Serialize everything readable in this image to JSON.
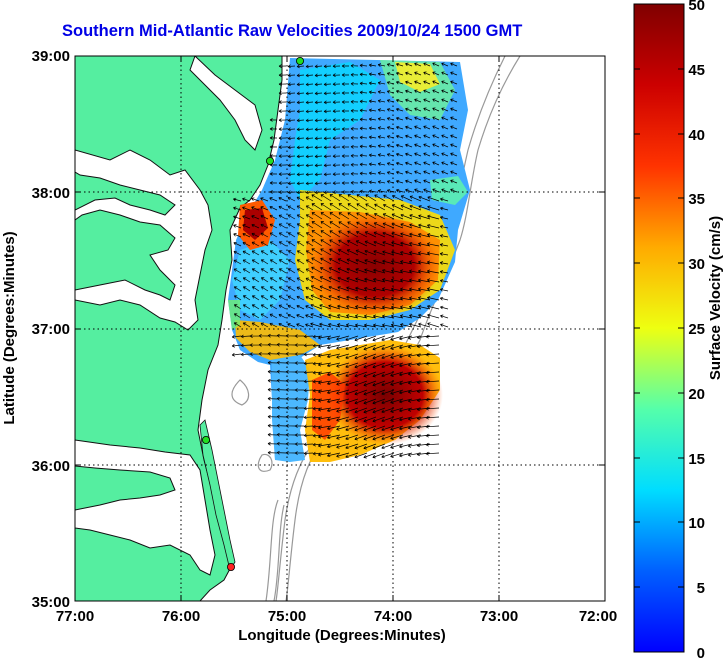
{
  "title": "Southern Mid-Atlantic Raw Velocities 2009/10/24 1500 GMT",
  "x_axis": {
    "label": "Longitude (Degrees:Minutes)",
    "ticks": [
      "77:00",
      "76:00",
      "75:00",
      "74:00",
      "73:00",
      "72:00"
    ]
  },
  "y_axis": {
    "label": "Latitude (Degrees:Minutes)",
    "ticks": [
      "39:00",
      "38:00",
      "37:00",
      "36:00",
      "35:00"
    ]
  },
  "colorbar": {
    "label": "Surface Velocity (cm/s)",
    "ticks": [
      "50",
      "45",
      "40",
      "35",
      "30",
      "25",
      "20",
      "15",
      "10",
      "5",
      "0"
    ],
    "min": 0,
    "max": 50
  },
  "colors": {
    "land": "#55eea0",
    "water": "#ffffff",
    "title": "#0000e6",
    "station_green": "#22dd22",
    "station_red": "#ff2222",
    "bathymetry": "#999999"
  }
}
